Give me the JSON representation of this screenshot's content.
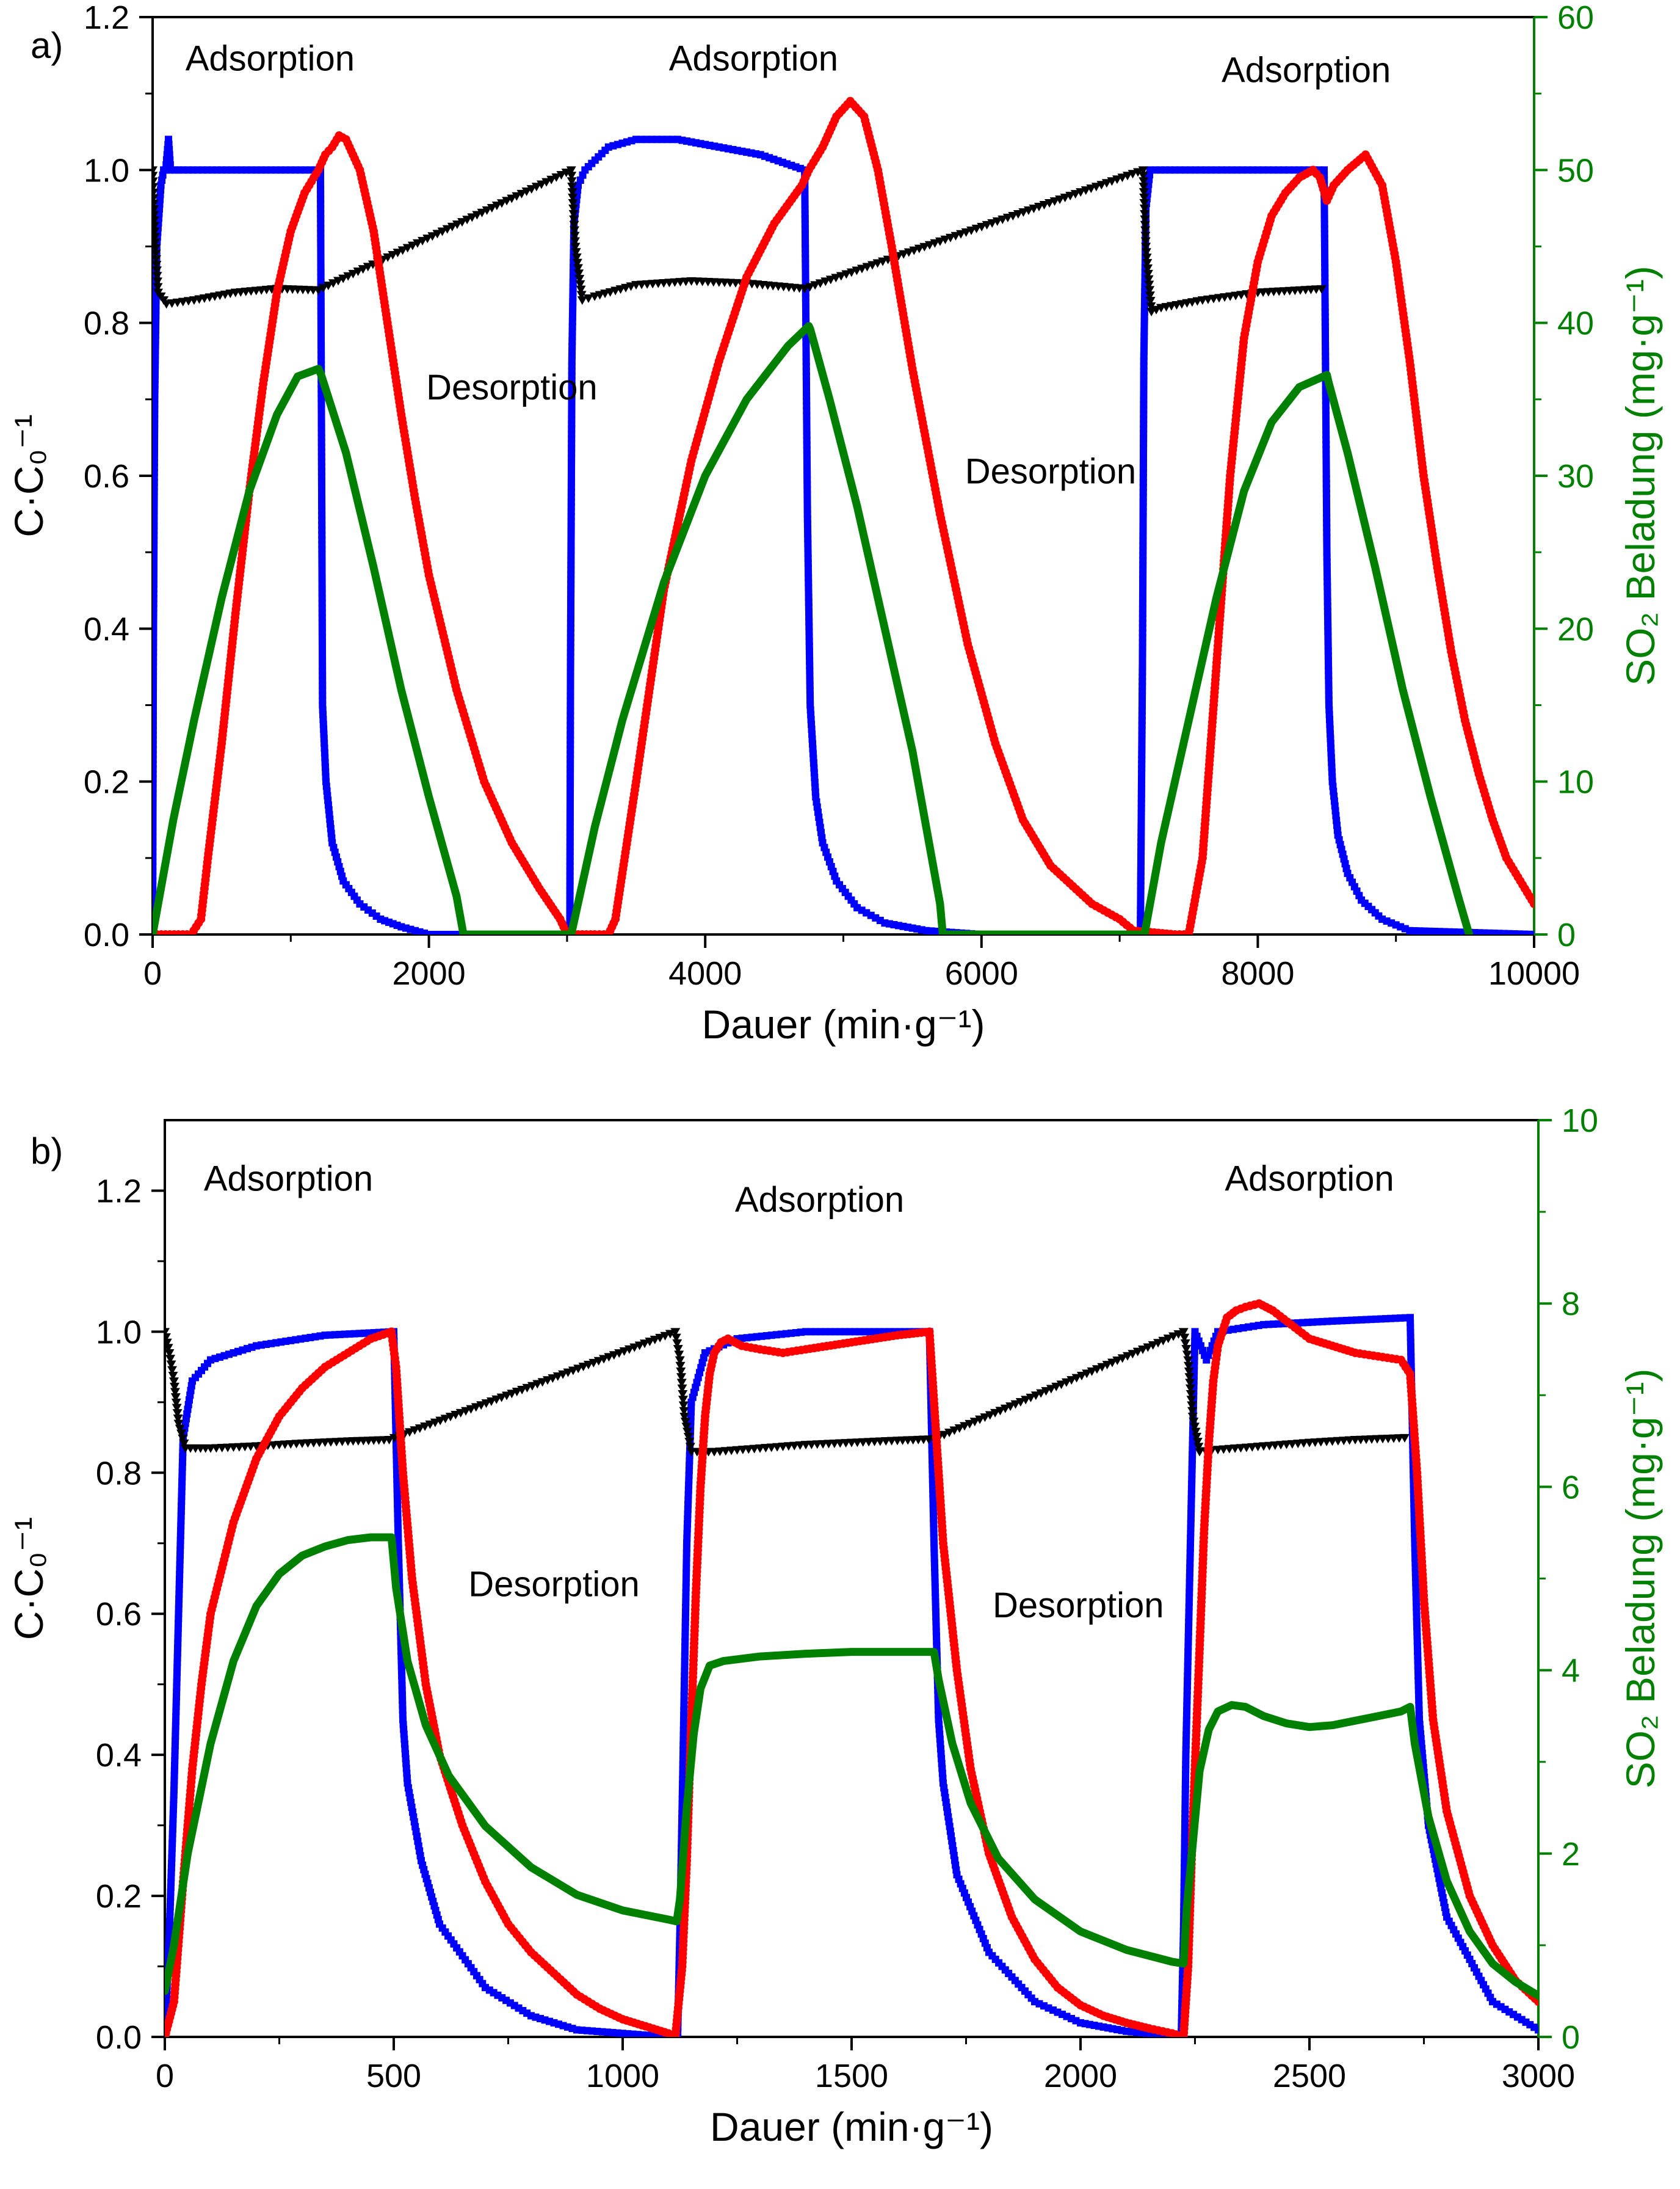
{
  "chart_data": [
    {
      "type": "line",
      "panel_label": "a)",
      "xlabel": "Dauer (min·g⁻¹)",
      "ylabel_left": "C·C₀⁻¹",
      "ylabel_right": "SO₂ Beladung (mg·g⁻¹)",
      "xlim": [
        0,
        10000
      ],
      "ylim_left": [
        0,
        1.2
      ],
      "ylim_right": [
        0,
        60
      ],
      "xticks": [
        "0",
        "2000",
        "4000",
        "6000",
        "8000",
        "10000"
      ],
      "yticks_left": [
        "0.0",
        "0.2",
        "0.4",
        "0.6",
        "0.8",
        "1.0",
        "1.2"
      ],
      "yticks_right": [
        "0",
        "10",
        "20",
        "30",
        "40",
        "50",
        "60"
      ],
      "annotations": [
        {
          "text": "Adsorption",
          "x": 850,
          "y": 1.13
        },
        {
          "text": "Adsorption",
          "x": 4350,
          "y": 1.13
        },
        {
          "text": "Adsorption",
          "x": 8350,
          "y": 1.115
        },
        {
          "text": "Desorption",
          "x": 2600,
          "y": 0.7
        },
        {
          "text": "Desorption",
          "x": 6500,
          "y": 0.59
        }
      ],
      "series": [
        {
          "axis": "left",
          "color": "#0000ff",
          "style": "squares",
          "x": [
            0,
            5,
            15,
            30,
            60,
            80,
            95,
            115,
            130,
            220,
            500,
            1000,
            1215,
            1230,
            1255,
            1300,
            1380,
            1500,
            1650,
            1800,
            2000,
            2500,
            2900,
            3020,
            3025,
            3035,
            3050,
            3080,
            3130,
            3300,
            3500,
            3800,
            4100,
            4400,
            4720,
            4740,
            4760,
            4800,
            4850,
            4950,
            5100,
            5300,
            5600,
            6000,
            7000,
            7150,
            7165,
            7175,
            7190,
            7220,
            7260,
            7400,
            7700,
            8000,
            8300,
            8480,
            8500,
            8515,
            8540,
            8580,
            8650,
            8750,
            8900,
            9100,
            10000
          ],
          "y": [
            0.0,
            0.35,
            0.7,
            0.9,
            0.98,
            1.0,
            1.0,
            1.04,
            1.0,
            1.0,
            1.0,
            1.0,
            1.0,
            0.3,
            0.2,
            0.12,
            0.07,
            0.04,
            0.02,
            0.01,
            0.0,
            0.0,
            0.0,
            0.0,
            0.35,
            0.75,
            0.93,
            0.98,
            1.0,
            1.03,
            1.04,
            1.04,
            1.03,
            1.02,
            1.0,
            0.55,
            0.3,
            0.18,
            0.12,
            0.07,
            0.035,
            0.015,
            0.005,
            0.0,
            0.0,
            0.0,
            0.35,
            0.75,
            0.95,
            1.0,
            1.0,
            1.0,
            1.0,
            1.0,
            1.0,
            1.0,
            0.5,
            0.3,
            0.2,
            0.13,
            0.08,
            0.045,
            0.02,
            0.005,
            0.0
          ]
        },
        {
          "axis": "left",
          "color": "#000000",
          "style": "triangles",
          "x": [
            0,
            15,
            40,
            100,
            300,
            600,
            900,
            1200,
            3030,
            3060,
            3110,
            3200,
            3500,
            3900,
            4300,
            4720,
            7170,
            7190,
            7230,
            7300,
            7600,
            8000,
            8500
          ],
          "y": [
            1.0,
            0.92,
            0.84,
            0.825,
            0.83,
            0.84,
            0.845,
            0.843,
            1.0,
            0.9,
            0.83,
            0.835,
            0.85,
            0.855,
            0.852,
            0.845,
            1.0,
            0.9,
            0.815,
            0.82,
            0.83,
            0.84,
            0.845
          ]
        },
        {
          "axis": "left",
          "color": "#ff0000",
          "style": "circles",
          "x": [
            0,
            280,
            350,
            400,
            500,
            600,
            700,
            800,
            900,
            1000,
            1100,
            1200,
            1250,
            1300,
            1350,
            1400,
            1500,
            1600,
            1700,
            1800,
            1900,
            2000,
            2200,
            2400,
            2600,
            2800,
            2950,
            3000,
            3050,
            3200,
            3300,
            3350,
            3500,
            3700,
            3900,
            4100,
            4300,
            4500,
            4700,
            4750,
            4850,
            4950,
            5050,
            5150,
            5250,
            5350,
            5500,
            5700,
            5900,
            6100,
            6300,
            6500,
            6800,
            7000,
            7100,
            7400,
            7500,
            7600,
            7700,
            7800,
            7900,
            8000,
            8100,
            8200,
            8300,
            8400,
            8450,
            8500,
            8550,
            8650,
            8780,
            8900,
            9000,
            9100,
            9200,
            9300,
            9400,
            9500,
            9600,
            9700,
            9800,
            9900,
            10000
          ],
          "y": [
            0.0,
            0.0,
            0.02,
            0.1,
            0.25,
            0.42,
            0.58,
            0.72,
            0.84,
            0.92,
            0.97,
            1.0,
            1.02,
            1.03,
            1.045,
            1.04,
            1.0,
            0.92,
            0.8,
            0.68,
            0.57,
            0.47,
            0.32,
            0.2,
            0.12,
            0.06,
            0.02,
            0.0,
            0.0,
            0.0,
            0.0,
            0.02,
            0.2,
            0.45,
            0.62,
            0.75,
            0.86,
            0.93,
            0.98,
            1.0,
            1.03,
            1.07,
            1.09,
            1.07,
            1.0,
            0.9,
            0.74,
            0.55,
            0.38,
            0.25,
            0.15,
            0.09,
            0.04,
            0.02,
            0.005,
            0.0,
            0.0,
            0.1,
            0.35,
            0.6,
            0.78,
            0.88,
            0.94,
            0.97,
            0.99,
            1.0,
            0.99,
            0.96,
            0.98,
            1.0,
            1.02,
            0.98,
            0.88,
            0.75,
            0.6,
            0.48,
            0.37,
            0.28,
            0.21,
            0.15,
            0.1,
            0.07,
            0.04
          ]
        },
        {
          "axis": "right",
          "color": "#008000",
          "style": "line",
          "x": [
            0,
            150,
            300,
            500,
            700,
            900,
            1050,
            1200,
            1220,
            1400,
            1600,
            1800,
            2000,
            2200,
            2250,
            3030,
            3200,
            3400,
            3700,
            4000,
            4300,
            4600,
            4750,
            4760,
            4900,
            5100,
            5300,
            5500,
            5700,
            5720,
            7180,
            7300,
            7500,
            7700,
            7900,
            8100,
            8300,
            8500,
            8510,
            8650,
            8850,
            9050,
            9250,
            9450,
            9530
          ],
          "y": [
            0,
            7.5,
            14,
            22,
            29,
            34,
            36.5,
            37,
            36.6,
            31.5,
            24,
            16,
            9,
            2.5,
            0,
            0,
            7,
            14,
            23,
            30,
            35,
            38.5,
            39.8,
            39.6,
            35,
            28,
            20,
            12,
            2,
            0,
            0,
            6,
            14,
            22,
            29,
            33.5,
            35.8,
            36.6,
            36.2,
            31.5,
            24,
            16,
            9,
            2.5,
            0
          ]
        }
      ]
    },
    {
      "type": "line",
      "panel_label": "b)",
      "xlabel": "Dauer (min·g⁻¹)",
      "ylabel_left": "C·C₀⁻¹",
      "ylabel_right": "SO₂ Beladung (mg·g⁻¹)",
      "xlim": [
        0,
        3000
      ],
      "ylim_left": [
        0,
        1.3
      ],
      "ylim_right": [
        0,
        10
      ],
      "xticks": [
        "0",
        "500",
        "1000",
        "1500",
        "2000",
        "2500",
        "3000"
      ],
      "yticks_left": [
        "0.0",
        "0.2",
        "0.4",
        "0.6",
        "0.8",
        "1.0",
        "1.2"
      ],
      "yticks_right": [
        "0",
        "2",
        "4",
        "6",
        "8",
        "10"
      ],
      "annotations": [
        {
          "text": "Adsorption",
          "x": 270,
          "y": 1.2
        },
        {
          "text": "Adsorption",
          "x": 1430,
          "y": 1.17
        },
        {
          "text": "Adsorption",
          "x": 2500,
          "y": 1.2
        },
        {
          "text": "Desorption",
          "x": 850,
          "y": 0.625
        },
        {
          "text": "Desorption",
          "x": 1995,
          "y": 0.595
        }
      ],
      "series": [
        {
          "axis": "left",
          "color": "#0000ff",
          "style": "squares",
          "x": [
            0,
            10,
            20,
            30,
            40,
            60,
            100,
            200,
            350,
            500,
            510,
            520,
            530,
            560,
            600,
            700,
            800,
            900,
            1000,
            1100,
            1120,
            1125,
            1132,
            1140,
            1150,
            1180,
            1250,
            1400,
            1550,
            1670,
            1680,
            1690,
            1700,
            1730,
            1800,
            1900,
            2000,
            2100,
            2200,
            2220,
            2225,
            2230,
            2240,
            2250,
            2275,
            2300,
            2400,
            2550,
            2720,
            2730,
            2740,
            2760,
            2800,
            2900,
            3000
          ],
          "y": [
            0.0,
            0.15,
            0.35,
            0.6,
            0.85,
            0.93,
            0.96,
            0.98,
            0.995,
            1.0,
            0.7,
            0.45,
            0.36,
            0.25,
            0.16,
            0.07,
            0.03,
            0.01,
            0.005,
            0.0,
            0.0,
            0.15,
            0.4,
            0.7,
            0.9,
            0.97,
            0.99,
            1.0,
            1.0,
            1.0,
            0.7,
            0.45,
            0.36,
            0.23,
            0.12,
            0.05,
            0.02,
            0.008,
            0.002,
            0.0,
            0.15,
            0.4,
            0.7,
            1.0,
            0.96,
            1.0,
            1.01,
            1.015,
            1.02,
            0.7,
            0.45,
            0.3,
            0.17,
            0.05,
            0.01
          ]
        },
        {
          "axis": "left",
          "color": "#000000",
          "style": "triangles",
          "x": [
            0,
            10,
            20,
            30,
            45,
            100,
            200,
            300,
            400,
            490,
            1115,
            1125,
            1135,
            1150,
            1200,
            1300,
            1400,
            1500,
            1600,
            1680,
            2225,
            2235,
            2245,
            2260,
            2300,
            2400,
            2500,
            2600,
            2720
          ],
          "y": [
            1.0,
            0.97,
            0.93,
            0.87,
            0.835,
            0.835,
            0.838,
            0.842,
            0.845,
            0.847,
            1.0,
            0.96,
            0.88,
            0.83,
            0.83,
            0.835,
            0.84,
            0.843,
            0.846,
            0.848,
            1.0,
            0.96,
            0.88,
            0.83,
            0.833,
            0.838,
            0.843,
            0.847,
            0.85
          ]
        },
        {
          "axis": "left",
          "color": "#ff0000",
          "style": "circles",
          "x": [
            0,
            20,
            40,
            60,
            80,
            100,
            150,
            200,
            250,
            300,
            350,
            400,
            450,
            495,
            505,
            520,
            540,
            570,
            600,
            650,
            700,
            750,
            800,
            850,
            900,
            950,
            1000,
            1050,
            1100,
            1115,
            1130,
            1140,
            1150,
            1160,
            1170,
            1180,
            1190,
            1200,
            1215,
            1230,
            1260,
            1300,
            1350,
            1400,
            1500,
            1600,
            1670,
            1685,
            1700,
            1730,
            1760,
            1800,
            1850,
            1900,
            1950,
            2000,
            2050,
            2100,
            2150,
            2200,
            2225,
            2235,
            2245,
            2260,
            2270,
            2280,
            2290,
            2300,
            2320,
            2340,
            2360,
            2390,
            2420,
            2460,
            2500,
            2550,
            2600,
            2650,
            2700,
            2720,
            2735,
            2750,
            2770,
            2800,
            2850,
            2900,
            2950,
            3000
          ],
          "y": [
            0.0,
            0.05,
            0.22,
            0.38,
            0.5,
            0.6,
            0.73,
            0.82,
            0.88,
            0.92,
            0.95,
            0.97,
            0.99,
            1.0,
            0.95,
            0.8,
            0.65,
            0.5,
            0.4,
            0.3,
            0.22,
            0.16,
            0.12,
            0.09,
            0.06,
            0.04,
            0.025,
            0.015,
            0.005,
            0.0,
            0.1,
            0.25,
            0.45,
            0.63,
            0.78,
            0.88,
            0.94,
            0.97,
            0.985,
            0.99,
            0.98,
            0.975,
            0.97,
            0.975,
            0.985,
            0.995,
            1.0,
            0.85,
            0.7,
            0.52,
            0.38,
            0.26,
            0.17,
            0.11,
            0.07,
            0.045,
            0.03,
            0.02,
            0.012,
            0.005,
            0.0,
            0.1,
            0.3,
            0.55,
            0.72,
            0.84,
            0.93,
            0.98,
            1.02,
            1.03,
            1.035,
            1.04,
            1.03,
            1.01,
            0.99,
            0.98,
            0.97,
            0.965,
            0.96,
            0.94,
            0.8,
            0.62,
            0.45,
            0.32,
            0.2,
            0.13,
            0.08,
            0.05
          ]
        },
        {
          "axis": "right",
          "color": "#008000",
          "style": "line",
          "x": [
            0,
            20,
            50,
            100,
            150,
            200,
            250,
            300,
            350,
            400,
            450,
            495,
            505,
            530,
            570,
            620,
            700,
            800,
            900,
            1000,
            1100,
            1118,
            1125,
            1140,
            1155,
            1170,
            1190,
            1220,
            1300,
            1400,
            1500,
            1600,
            1680,
            1690,
            1720,
            1760,
            1820,
            1900,
            2000,
            2100,
            2200,
            2225,
            2232,
            2245,
            2260,
            2280,
            2300,
            2330,
            2360,
            2400,
            2450,
            2500,
            2550,
            2600,
            2650,
            2700,
            2720,
            2730,
            2760,
            2800,
            2850,
            2900,
            2950,
            3000
          ],
          "y": [
            0.5,
            1.0,
            2.0,
            3.2,
            4.1,
            4.7,
            5.05,
            5.25,
            5.35,
            5.42,
            5.45,
            5.45,
            4.9,
            4.1,
            3.4,
            2.85,
            2.3,
            1.85,
            1.55,
            1.38,
            1.28,
            1.26,
            1.5,
            2.5,
            3.3,
            3.8,
            4.05,
            4.1,
            4.15,
            4.18,
            4.2,
            4.2,
            4.2,
            3.9,
            3.2,
            2.55,
            1.95,
            1.5,
            1.15,
            0.95,
            0.82,
            0.8,
            1.4,
            2.1,
            2.9,
            3.35,
            3.55,
            3.62,
            3.6,
            3.5,
            3.42,
            3.38,
            3.4,
            3.45,
            3.5,
            3.55,
            3.6,
            3.2,
            2.4,
            1.7,
            1.15,
            0.8,
            0.6,
            0.45
          ]
        }
      ]
    }
  ]
}
